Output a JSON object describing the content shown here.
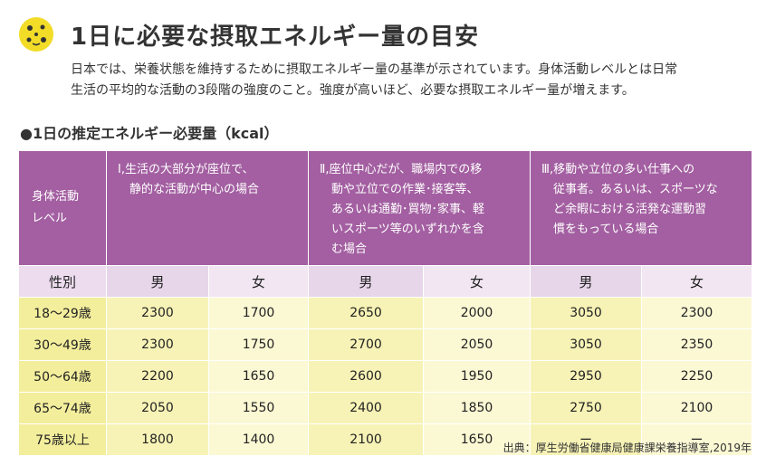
{
  "colors": {
    "header": "#a35fa1",
    "sex_row": "#ecdcee",
    "data_row": "#f7f3b6",
    "logo": "#f2dc27"
  },
  "logo": {
    "icon": "yellow-badge-icon"
  },
  "title": "1日に必要な摂取エネルギー量の目安",
  "intro": {
    "line1": "日本では、栄養状態を維持するために摂取エネルギー量の基準が示されています。身体活動レベルとは日常",
    "line2": "生活の平均的な活動の3段階の強度のこと。強度が高いほど、必要な摂取エネルギー量が増えます。"
  },
  "table_title": "●1日の推定エネルギー必要量（kcal）",
  "table": {
    "level_header": {
      "line1": "身体活動",
      "line2": "レベル"
    },
    "levels": [
      {
        "line1": "Ⅰ,生活の大部分が座位で、",
        "line2": "　静的な活動が中心の場合"
      },
      {
        "line1": "Ⅱ,座位中心だが、職場内での移",
        "line2": "　動や立位での作業･接客等、",
        "line3": "　あるいは通勤･買物･家事、軽",
        "line4": "　いスポーツ等のいずれかを含",
        "line5": "　む場合"
      },
      {
        "line1": "Ⅲ,移動や立位の多い仕事への",
        "line2": "　従事者。あるいは、スポーツな",
        "line3": "　ど余暇における活発な運動習",
        "line4": "　慣をもっている場合"
      }
    ],
    "sex_label": "性別",
    "male": "男",
    "female": "女",
    "rows": [
      {
        "age": "18〜29歳",
        "values": [
          "2300",
          "1700",
          "2650",
          "2000",
          "3050",
          "2300"
        ]
      },
      {
        "age": "30〜49歳",
        "values": [
          "2300",
          "1750",
          "2700",
          "2050",
          "3050",
          "2350"
        ]
      },
      {
        "age": "50〜64歳",
        "values": [
          "2200",
          "1650",
          "2600",
          "1950",
          "2950",
          "2250"
        ]
      },
      {
        "age": "65〜74歳",
        "values": [
          "2050",
          "1550",
          "2400",
          "1850",
          "2750",
          "2100"
        ]
      },
      {
        "age": "75歳以上",
        "values": [
          "1800",
          "1400",
          "2100",
          "1650",
          "ー",
          "ー"
        ]
      }
    ]
  },
  "source": "出典：厚生労働省健康局健康課栄養指導室,2019年"
}
